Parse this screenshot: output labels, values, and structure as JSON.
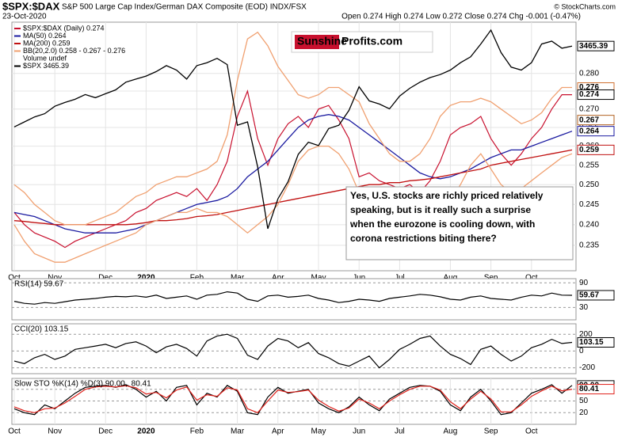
{
  "chart_data": [
    {
      "type": "line",
      "log": true,
      "grid": true,
      "title": "$SPX:$DAX",
      "subtitle": "S&P 500 Large Cap Index/German DAX Composite (EOD) INDX/FSX",
      "date": "23-Oct-2020",
      "stats": "Open 0.274 High 0.274 Low 0.272 Close 0.274 Chg -0.001 (-0.47%)",
      "watermark": "© StockCharts.com",
      "logo": [
        "Sunshine",
        "Profits.com"
      ],
      "annotation": [
        "Yes, U.S. stocks are richly priced relatively",
        "speaking, but is it really such a surprise",
        "when the eurozone is cooling down, with",
        "corona restrictions biting there?"
      ],
      "categories": [
        "Oct",
        null,
        null,
        null,
        "Nov",
        null,
        null,
        null,
        null,
        "Dec",
        null,
        null,
        null,
        "2020",
        null,
        null,
        null,
        null,
        "Feb",
        null,
        null,
        null,
        "Mar",
        null,
        null,
        null,
        "Apr",
        null,
        null,
        null,
        "May",
        null,
        null,
        null,
        "Jun",
        null,
        null,
        null,
        "Jul",
        null,
        null,
        null,
        null,
        "Aug",
        null,
        null,
        null,
        "Sep",
        null,
        null,
        null,
        "Oct",
        null,
        null,
        null,
        null
      ],
      "ylim": [
        0.229,
        0.295
      ],
      "y2lim": [
        2194,
        3638
      ],
      "yticks": [
        0.235,
        {
          "value": 0.24,
          "label": "0.240"
        },
        0.245,
        {
          "value": 0.25,
          "label": "0.250"
        },
        0.255,
        {
          "value": 0.26,
          "label": "0.260"
        },
        0.265,
        {
          "value": 0.27,
          "label": "0.270"
        },
        0.275,
        {
          "value": 0.28,
          "label": "0.280"
        }
      ],
      "series": [
        {
          "name": "$SPX:$DAX (Daily) 0.274",
          "color": "#c8102e",
          "values": [
            0.243,
            0.24,
            0.238,
            0.237,
            0.236,
            0.2345,
            0.236,
            0.237,
            0.238,
            0.239,
            0.24,
            0.241,
            0.243,
            0.244,
            0.246,
            0.247,
            0.248,
            0.247,
            0.249,
            0.246,
            0.25,
            0.256,
            0.268,
            0.275,
            0.262,
            0.255,
            0.262,
            0.266,
            0.268,
            0.265,
            0.27,
            0.271,
            0.267,
            0.262,
            0.252,
            0.253,
            0.251,
            0.25,
            0.249,
            0.25,
            0.248,
            0.251,
            0.256,
            0.263,
            0.265,
            0.266,
            0.268,
            0.262,
            0.258,
            0.255,
            0.258,
            0.262,
            0.265,
            0.27,
            0.274,
            0.274
          ]
        },
        {
          "name": "MA(50) 0.264",
          "color": "#1a1aa0",
          "values": [
            0.243,
            0.2425,
            0.242,
            0.241,
            0.24,
            0.239,
            0.2385,
            0.238,
            0.238,
            0.238,
            0.238,
            0.2385,
            0.239,
            0.24,
            0.241,
            0.242,
            0.243,
            0.244,
            0.245,
            0.2455,
            0.246,
            0.247,
            0.249,
            0.252,
            0.254,
            0.256,
            0.259,
            0.262,
            0.265,
            0.267,
            0.268,
            0.2685,
            0.268,
            0.267,
            0.265,
            0.263,
            0.261,
            0.259,
            0.257,
            0.255,
            0.253,
            0.252,
            0.2515,
            0.252,
            0.253,
            0.254,
            0.2555,
            0.257,
            0.258,
            0.259,
            0.259,
            0.26,
            0.261,
            0.262,
            0.263,
            0.264
          ]
        },
        {
          "name": "MA(200) 0.259",
          "color": "#c01010",
          "values": [
            0.241,
            0.2408,
            0.2405,
            0.2403,
            0.24,
            0.24,
            0.24,
            0.24,
            0.24,
            0.24,
            0.24,
            0.24,
            0.2402,
            0.2405,
            0.241,
            0.241,
            0.2412,
            0.2415,
            0.242,
            0.2422,
            0.2425,
            0.243,
            0.2435,
            0.244,
            0.2445,
            0.245,
            0.2455,
            0.246,
            0.2465,
            0.247,
            0.2475,
            0.248,
            0.2485,
            0.249,
            0.2495,
            0.25,
            0.25,
            0.2505,
            0.2505,
            0.251,
            0.2512,
            0.2515,
            0.252,
            0.2525,
            0.253,
            0.2535,
            0.254,
            0.255,
            0.2555,
            0.256,
            0.2565,
            0.257,
            0.2575,
            0.258,
            0.2585,
            0.259
          ]
        },
        {
          "name": "BB(20,2.0) 0.258 - 0.267 - 0.276",
          "color": "#f0a070",
          "values": [
            0.25,
            0.248,
            0.245,
            0.243,
            0.241,
            0.24,
            0.24,
            0.24,
            0.241,
            0.242,
            0.243,
            0.245,
            0.247,
            0.248,
            0.25,
            0.251,
            0.252,
            0.252,
            0.253,
            0.254,
            0.256,
            0.263,
            0.278,
            0.29,
            0.292,
            0.288,
            0.282,
            0.278,
            0.274,
            0.273,
            0.274,
            0.276,
            0.276,
            0.274,
            0.272,
            0.266,
            0.262,
            0.258,
            0.256,
            0.256,
            0.258,
            0.262,
            0.268,
            0.271,
            0.272,
            0.272,
            0.273,
            0.272,
            0.27,
            0.268,
            0.266,
            0.267,
            0.269,
            0.273,
            0.276,
            0.276
          ],
          "lower": [
            0.24,
            0.236,
            0.233,
            0.232,
            0.231,
            0.231,
            0.232,
            0.233,
            0.234,
            0.235,
            0.236,
            0.237,
            0.238,
            0.24,
            0.241,
            0.242,
            0.243,
            0.243,
            0.244,
            0.243,
            0.243,
            0.242,
            0.24,
            0.238,
            0.24,
            0.242,
            0.245,
            0.25,
            0.256,
            0.259,
            0.26,
            0.26,
            0.258,
            0.254,
            0.248,
            0.246,
            0.245,
            0.245,
            0.245,
            0.244,
            0.243,
            0.243,
            0.244,
            0.246,
            0.25,
            0.255,
            0.258,
            0.254,
            0.25,
            0.248,
            0.249,
            0.251,
            0.253,
            0.255,
            0.257,
            0.258
          ]
        },
        {
          "name": "Volume undef"
        },
        {
          "name": "$SPX 3465.39",
          "color": "#000000",
          "axis": "y2",
          "values": [
            2940,
            2970,
            3000,
            3020,
            3066,
            3090,
            3110,
            3140,
            3120,
            3145,
            3170,
            3220,
            3240,
            3260,
            3290,
            3330,
            3300,
            3240,
            3330,
            3350,
            3380,
            3337,
            2950,
            2970,
            2710,
            2390,
            2540,
            2630,
            2780,
            2850,
            2830,
            2930,
            2950,
            3040,
            3190,
            3100,
            3080,
            3050,
            3130,
            3180,
            3220,
            3250,
            3270,
            3300,
            3350,
            3390,
            3480,
            3580,
            3420,
            3320,
            3300,
            3350,
            3480,
            3500,
            3450,
            3465.39
          ]
        }
      ],
      "tags": [
        {
          "value": 3465.39,
          "axis": "y2",
          "color": "#000000"
        },
        {
          "value": 0.276,
          "color": "#d07030"
        },
        {
          "value": 0.274,
          "color": "#000000"
        },
        {
          "value": 0.267,
          "color": "#b06020"
        },
        {
          "value": 0.264,
          "color": "#1a1aa0"
        },
        {
          "value": 0.259,
          "color": "#c01010"
        }
      ]
    },
    {
      "type": "line",
      "title": "RSI(14) 59.67",
      "ylim": [
        0,
        100
      ],
      "yticks": [
        30,
        90
      ],
      "series": [
        {
          "color": "#000000",
          "values": [
            45,
            40,
            38,
            42,
            40,
            44,
            48,
            50,
            52,
            55,
            57,
            56,
            58,
            55,
            60,
            52,
            55,
            58,
            50,
            60,
            62,
            68,
            65,
            50,
            45,
            58,
            60,
            55,
            57,
            60,
            52,
            48,
            42,
            45,
            50,
            48,
            45,
            52,
            55,
            58,
            62,
            60,
            56,
            50,
            48,
            55,
            58,
            52,
            50,
            48,
            55,
            60,
            58,
            65,
            60,
            59.67
          ]
        }
      ],
      "tags": [
        {
          "value": 59.67,
          "color": "#000000"
        }
      ]
    },
    {
      "type": "line",
      "title": "CCI(20) 103.15",
      "ylim": [
        -270,
        325
      ],
      "yticks": [
        -200,
        0,
        200
      ],
      "series": [
        {
          "color": "#000000",
          "values": [
            -120,
            -150,
            -80,
            -40,
            -100,
            -60,
            20,
            40,
            60,
            80,
            40,
            90,
            110,
            60,
            -20,
            50,
            80,
            30,
            -60,
            120,
            180,
            200,
            150,
            -50,
            -100,
            60,
            150,
            120,
            40,
            100,
            -30,
            -80,
            -150,
            -180,
            -120,
            -60,
            -200,
            -100,
            20,
            80,
            150,
            180,
            60,
            -40,
            -90,
            -160,
            20,
            60,
            -40,
            -120,
            -60,
            40,
            80,
            140,
            90,
            103.15
          ]
        }
      ],
      "tags": [
        {
          "value": 103.15,
          "color": "#000000"
        }
      ]
    },
    {
      "type": "line",
      "title_parts": [
        "Slow STO %K(14) %D(3) 90.00,",
        "80.41"
      ],
      "ylim": [
        -10,
        108
      ],
      "yticks": [
        20,
        50,
        80
      ],
      "series": [
        {
          "color": "#000000",
          "values": [
            30,
            20,
            15,
            40,
            30,
            50,
            70,
            85,
            88,
            90,
            85,
            92,
            80,
            60,
            75,
            50,
            85,
            90,
            40,
            70,
            60,
            90,
            75,
            20,
            15,
            60,
            85,
            70,
            75,
            80,
            45,
            30,
            20,
            35,
            60,
            40,
            25,
            55,
            70,
            85,
            90,
            88,
            75,
            40,
            25,
            60,
            80,
            50,
            15,
            20,
            45,
            70,
            80,
            92,
            70,
            90
          ]
        },
        {
          "color": "#e0201a",
          "values": [
            35,
            25,
            20,
            30,
            32,
            45,
            62,
            80,
            86,
            88,
            86,
            89,
            84,
            68,
            72,
            58,
            78,
            86,
            52,
            66,
            62,
            84,
            78,
            30,
            20,
            50,
            78,
            72,
            74,
            78,
            52,
            36,
            24,
            32,
            55,
            45,
            30,
            50,
            66,
            80,
            88,
            88,
            78,
            48,
            30,
            55,
            75,
            55,
            22,
            22,
            40,
            62,
            76,
            88,
            76,
            80.41
          ]
        }
      ],
      "tags": [
        {
          "value": 90,
          "label": "90.00",
          "color": "#000000"
        },
        {
          "value": 80.41,
          "color": "#e0201a"
        }
      ]
    }
  ]
}
